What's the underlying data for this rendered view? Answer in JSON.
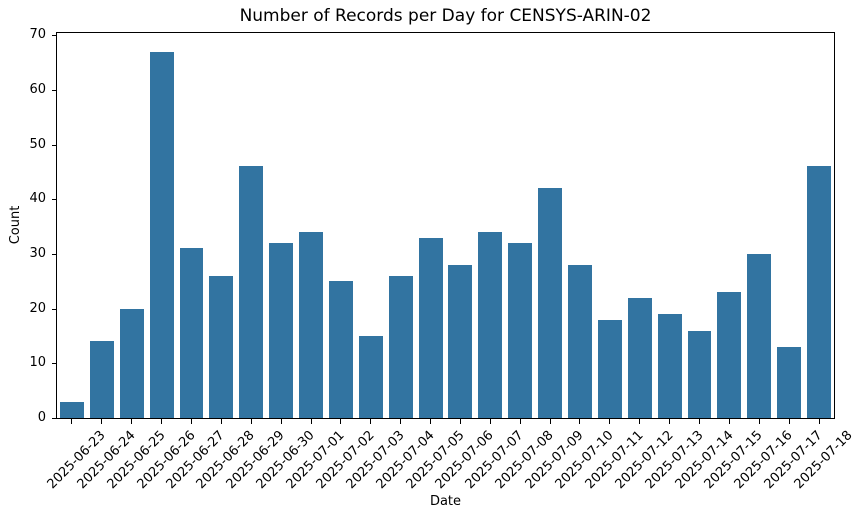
{
  "chart_data": {
    "type": "bar",
    "title": "Number of Records per Day for CENSYS-ARIN-02",
    "xlabel": "Date",
    "ylabel": "Count",
    "categories": [
      "2025-06-23",
      "2025-06-24",
      "2025-06-25",
      "2025-06-26",
      "2025-06-27",
      "2025-06-28",
      "2025-06-29",
      "2025-06-30",
      "2025-07-01",
      "2025-07-02",
      "2025-07-03",
      "2025-07-04",
      "2025-07-05",
      "2025-07-06",
      "2025-07-07",
      "2025-07-08",
      "2025-07-09",
      "2025-07-10",
      "2025-07-11",
      "2025-07-12",
      "2025-07-13",
      "2025-07-14",
      "2025-07-15",
      "2025-07-16",
      "2025-07-17",
      "2025-07-18"
    ],
    "values": [
      3,
      14,
      20,
      67,
      31,
      26,
      46,
      32,
      34,
      25,
      15,
      26,
      33,
      28,
      34,
      32,
      42,
      28,
      18,
      22,
      19,
      16,
      23,
      30,
      13,
      46
    ],
    "yticks": [
      0,
      10,
      20,
      30,
      40,
      50,
      60,
      70
    ],
    "ylim": [
      0,
      70.4
    ],
    "x_tick_rotation": 45,
    "grid": false,
    "bar_color": "#3274a1",
    "axis_color": "#000000"
  }
}
